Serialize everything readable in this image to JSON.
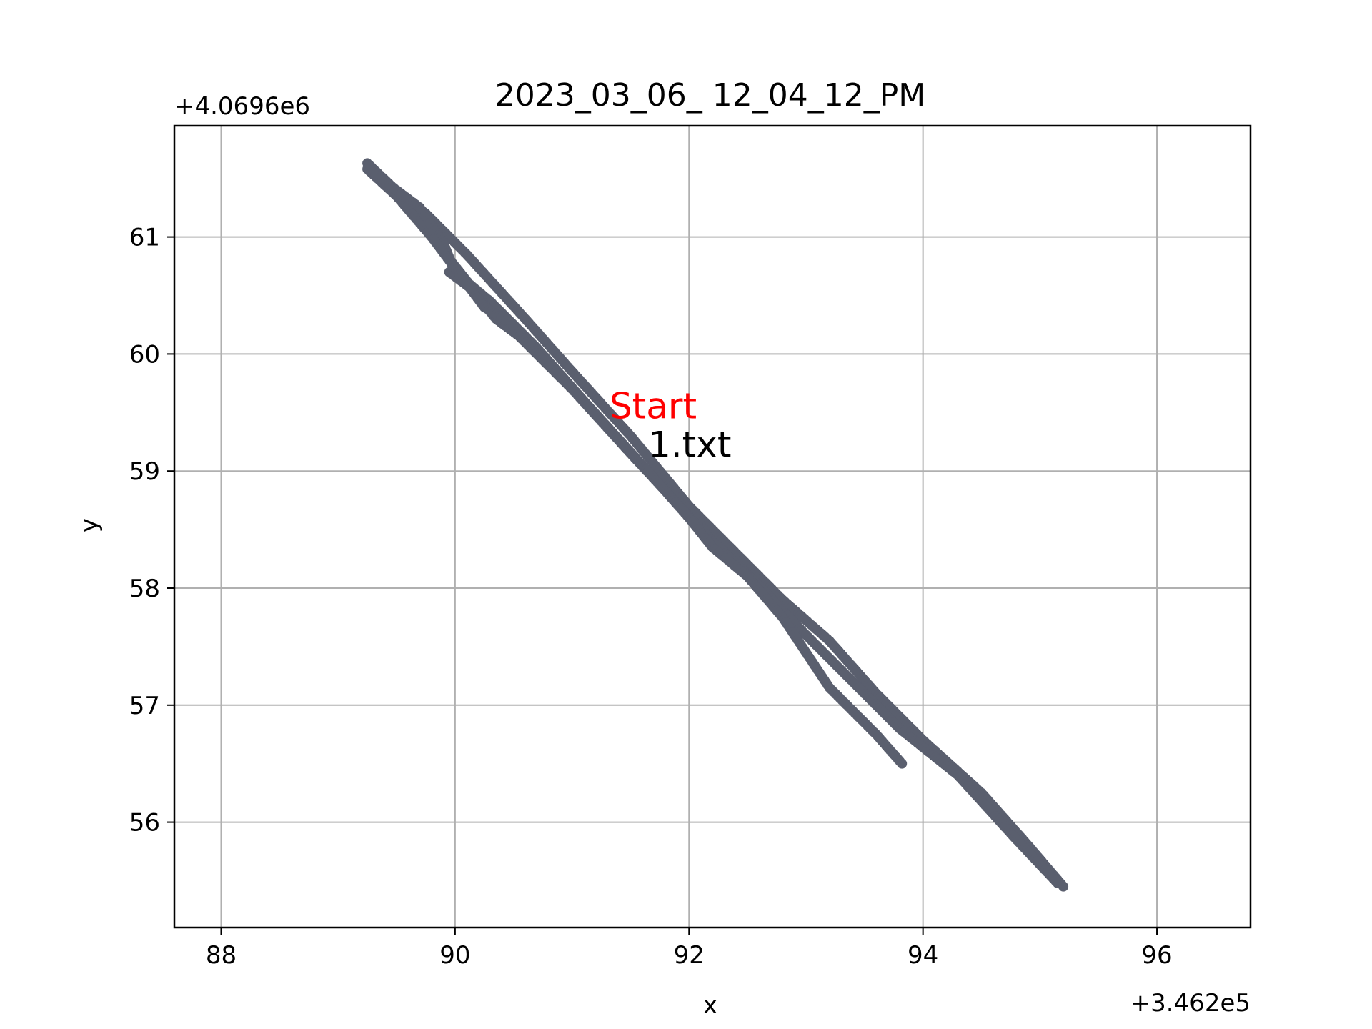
{
  "chart_data": {
    "type": "scatter",
    "title": "2023_03_06_ 12_04_12_PM",
    "xlabel": "x",
    "ylabel": "y",
    "x_offset_label": "+3.462e5",
    "y_offset_label": "+4.0696e6",
    "xlim": [
      87.6,
      96.8
    ],
    "ylim": [
      55.1,
      61.95
    ],
    "xticks": [
      88,
      90,
      92,
      94,
      96
    ],
    "yticks": [
      56,
      57,
      58,
      59,
      60,
      61
    ],
    "xtick_labels": [
      "88",
      "90",
      "92",
      "94",
      "96"
    ],
    "ytick_labels": [
      "56",
      "57",
      "58",
      "59",
      "60",
      "61"
    ],
    "grid": true,
    "series_color": "#5a5f6e",
    "start_label_color": "#ff0000",
    "annotations": [
      {
        "text": "Start",
        "x": 91.32,
        "y": 59.45,
        "color": "#ff0000"
      },
      {
        "text": "1.txt",
        "x": 91.65,
        "y": 59.12,
        "color": "#000000"
      }
    ],
    "paths": [
      {
        "points": [
          [
            89.25,
            61.63
          ],
          [
            89.6,
            61.3
          ],
          [
            89.75,
            61.2
          ],
          [
            90.1,
            60.85
          ],
          [
            90.6,
            60.3
          ],
          [
            91.0,
            59.85
          ],
          [
            91.5,
            59.3
          ],
          [
            92.0,
            58.7
          ],
          [
            92.3,
            58.4
          ],
          [
            92.6,
            58.1
          ],
          [
            92.8,
            57.9
          ],
          [
            93.2,
            57.55
          ],
          [
            93.6,
            57.1
          ],
          [
            94.0,
            56.7
          ],
          [
            94.5,
            56.25
          ],
          [
            94.9,
            55.8
          ],
          [
            95.2,
            55.45
          ]
        ],
        "step": 0.025
      },
      {
        "points": [
          [
            89.25,
            61.58
          ],
          [
            89.5,
            61.35
          ],
          [
            89.8,
            61.0
          ],
          [
            90.0,
            60.75
          ],
          [
            90.2,
            60.5
          ],
          [
            90.5,
            60.2
          ],
          [
            91.0,
            59.7
          ],
          [
            91.5,
            59.15
          ],
          [
            91.9,
            58.72
          ],
          [
            92.2,
            58.4
          ],
          [
            92.6,
            58.02
          ],
          [
            93.0,
            57.6
          ],
          [
            93.4,
            57.2
          ],
          [
            93.8,
            56.8
          ],
          [
            94.3,
            56.4
          ],
          [
            94.8,
            55.85
          ],
          [
            95.15,
            55.48
          ]
        ],
        "step": 0.025
      },
      {
        "points": [
          [
            89.3,
            61.55
          ],
          [
            89.7,
            61.25
          ],
          [
            89.9,
            60.95
          ],
          [
            90.0,
            60.7
          ],
          [
            90.3,
            60.45
          ],
          [
            90.7,
            60.05
          ],
          [
            91.1,
            59.6
          ],
          [
            91.6,
            59.05
          ],
          [
            92.0,
            58.6
          ],
          [
            92.2,
            58.35
          ],
          [
            92.5,
            58.1
          ],
          [
            92.8,
            57.75
          ],
          [
            93.0,
            57.45
          ],
          [
            93.2,
            57.15
          ],
          [
            93.4,
            56.95
          ],
          [
            93.6,
            56.75
          ],
          [
            93.82,
            56.5
          ]
        ],
        "step": 0.025
      },
      {
        "points": [
          [
            89.95,
            60.7
          ],
          [
            90.15,
            60.55
          ],
          [
            90.35,
            60.3
          ],
          [
            90.55,
            60.15
          ],
          [
            90.8,
            59.9
          ]
        ],
        "step": 0.025
      },
      {
        "points": [
          [
            89.8,
            61.0
          ],
          [
            90.1,
            60.6
          ],
          [
            90.25,
            60.4
          ],
          [
            90.5,
            60.25
          ]
        ],
        "step": 0.025
      }
    ]
  }
}
